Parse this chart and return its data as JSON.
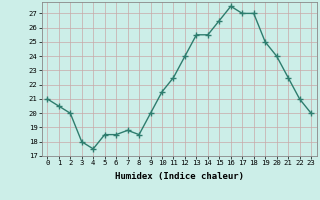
{
  "x": [
    0,
    1,
    2,
    3,
    4,
    5,
    6,
    7,
    8,
    9,
    10,
    11,
    12,
    13,
    14,
    15,
    16,
    17,
    18,
    19,
    20,
    21,
    22,
    23
  ],
  "y": [
    21,
    20.5,
    20,
    18,
    17.5,
    18.5,
    18.5,
    18.8,
    18.5,
    20,
    21.5,
    22.5,
    24,
    25.5,
    25.5,
    26.5,
    27.5,
    27,
    27,
    25,
    24,
    22.5,
    21,
    20
  ],
  "xlabel": "Humidex (Indice chaleur)",
  "xlim": [
    -0.5,
    23.5
  ],
  "ylim": [
    17,
    27.8
  ],
  "yticks": [
    17,
    18,
    19,
    20,
    21,
    22,
    23,
    24,
    25,
    26,
    27
  ],
  "xticks": [
    0,
    1,
    2,
    3,
    4,
    5,
    6,
    7,
    8,
    9,
    10,
    11,
    12,
    13,
    14,
    15,
    16,
    17,
    18,
    19,
    20,
    21,
    22,
    23
  ],
  "line_color": "#2e7d6e",
  "marker": "+",
  "marker_size": 4,
  "bg_color": "#cceee8",
  "grid_color_h": "#c8a8a8",
  "grid_color_v": "#c8a8a8",
  "line_width": 1.0,
  "tick_fontsize": 5.2,
  "xlabel_fontsize": 6.5
}
